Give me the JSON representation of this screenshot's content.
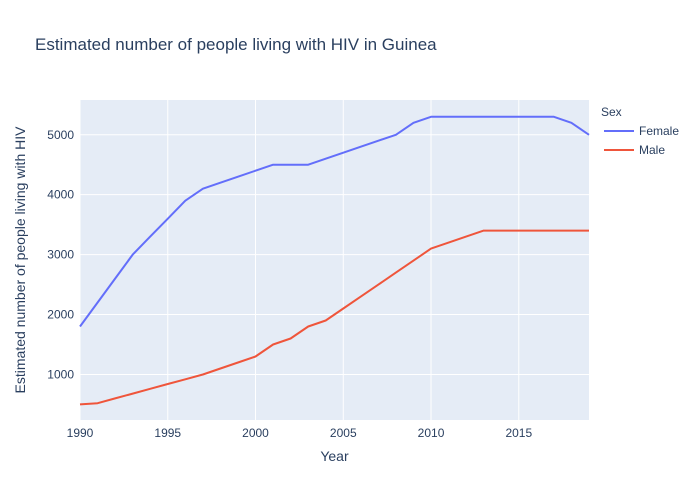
{
  "chart_data": {
    "type": "line",
    "title": "Estimated number of people living with HIV in Guinea",
    "xlabel": "Year",
    "ylabel": "Estimated number of people living with HIV",
    "xlim": [
      1990,
      2019
    ],
    "ylim": [
      240,
      5580
    ],
    "x_ticks": [
      1990,
      1995,
      2000,
      2005,
      2010,
      2015
    ],
    "y_ticks": [
      1000,
      2000,
      3000,
      4000,
      5000
    ],
    "grid": true,
    "legend": {
      "title": "Sex",
      "position": "top-right"
    },
    "x": [
      1990,
      1991,
      1992,
      1993,
      1994,
      1995,
      1996,
      1997,
      1998,
      1999,
      2000,
      2001,
      2002,
      2003,
      2004,
      2005,
      2006,
      2007,
      2008,
      2009,
      2010,
      2011,
      2012,
      2013,
      2014,
      2015,
      2016,
      2017,
      2018,
      2019
    ],
    "series": [
      {
        "name": "Female",
        "color": "#636efa",
        "values": [
          1800,
          2200,
          2600,
          3000,
          3300,
          3600,
          3900,
          4100,
          4200,
          4300,
          4400,
          4500,
          4500,
          4500,
          4600,
          4700,
          4800,
          4900,
          5000,
          5200,
          5300,
          5300,
          5300,
          5300,
          5300,
          5300,
          5300,
          5300,
          5200,
          5000
        ]
      },
      {
        "name": "Male",
        "color": "#ef553b",
        "values": [
          500,
          520,
          600,
          680,
          760,
          840,
          920,
          1000,
          1100,
          1200,
          1300,
          1500,
          1600,
          1800,
          1900,
          2100,
          2300,
          2500,
          2700,
          2900,
          3100,
          3200,
          3300,
          3400,
          3400,
          3400,
          3400,
          3400,
          3400,
          3400
        ]
      }
    ]
  }
}
